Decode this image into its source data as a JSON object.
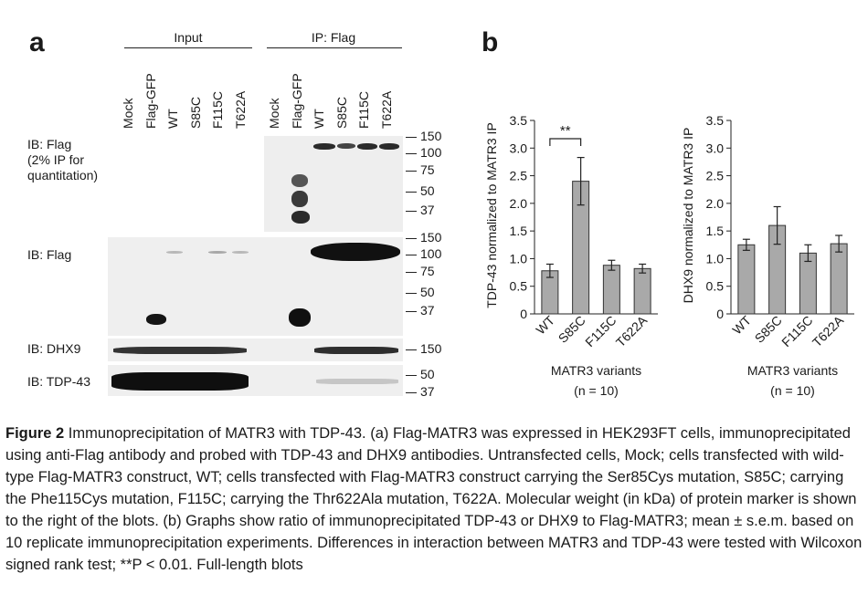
{
  "panel_a": {
    "letter": "a",
    "group_input": "Input",
    "group_ip": "IP: Flag",
    "lanes": [
      "Mock",
      "Flag-GFP",
      "WT",
      "S85C",
      "F115C",
      "T622A"
    ],
    "rows": [
      {
        "label": "IB: Flag\n(2% IP for\nquantitation)",
        "markers": [
          "150",
          "100",
          "75",
          "50",
          "37"
        ]
      },
      {
        "label": "IB: Flag",
        "markers": [
          "150",
          "100",
          "75",
          "50",
          "37"
        ]
      },
      {
        "label": "IB: DHX9",
        "markers": [
          "150"
        ]
      },
      {
        "label": "IB: TDP-43",
        "markers": [
          "50",
          "37"
        ]
      }
    ]
  },
  "panel_b": {
    "letter": "b",
    "significance": "**",
    "charts": [
      {
        "type": "bar",
        "ylabel": "TDP-43 normalized to MATR3 IP",
        "xlabel": "MATR3 variants",
        "note": "(n = 10)",
        "categories": [
          "WT",
          "S85C",
          "F115C",
          "T622A"
        ],
        "values": [
          0.78,
          2.4,
          0.88,
          0.82
        ],
        "errors": [
          0.12,
          0.43,
          0.09,
          0.08
        ],
        "ylim": [
          0,
          3.5
        ],
        "yticks": [
          "0",
          "0.5",
          "1.0",
          "1.5",
          "2.0",
          "2.5",
          "3.0",
          "3.5"
        ]
      },
      {
        "type": "bar",
        "ylabel": "DHX9 normalized to MATR3 IP",
        "xlabel": "MATR3 variants",
        "note": "(n = 10)",
        "categories": [
          "WT",
          "S85C",
          "F115C",
          "T622A"
        ],
        "values": [
          1.25,
          1.6,
          1.1,
          1.27
        ],
        "errors": [
          0.1,
          0.34,
          0.15,
          0.15
        ],
        "ylim": [
          0,
          3.5
        ],
        "yticks": [
          "0",
          "0.5",
          "1.0",
          "1.5",
          "2.0",
          "2.5",
          "3.0",
          "3.5"
        ]
      }
    ]
  },
  "caption": {
    "label": "Figure 2",
    "text": "Immunoprecipitation of MATR3 with TDP-43. (a) Flag-MATR3 was expressed in HEK293FT cells, immunoprecipitated using anti-Flag antibody and probed with TDP-43 and DHX9 antibodies. Untransfected cells, Mock; cells transfected with wild-type Flag-MATR3 construct, WT; cells transfected with Flag-MATR3 construct carrying the Ser85Cys mutation, S85C; carrying the Phe115Cys mutation, F115C; carrying the Thr622Ala mutation, T622A. Molecular weight (in kDa) of protein marker is shown to the right of the blots. (b) Graphs show ratio of immunoprecipitated TDP-43 or DHX9 to Flag-MATR3; mean ± s.e.m. based on 10 replicate immunoprecipitation experiments. Differences in interaction between MATR3 and TDP-43 were tested with Wilcoxon signed rank test; **P < 0.01. Full-length blots"
  }
}
